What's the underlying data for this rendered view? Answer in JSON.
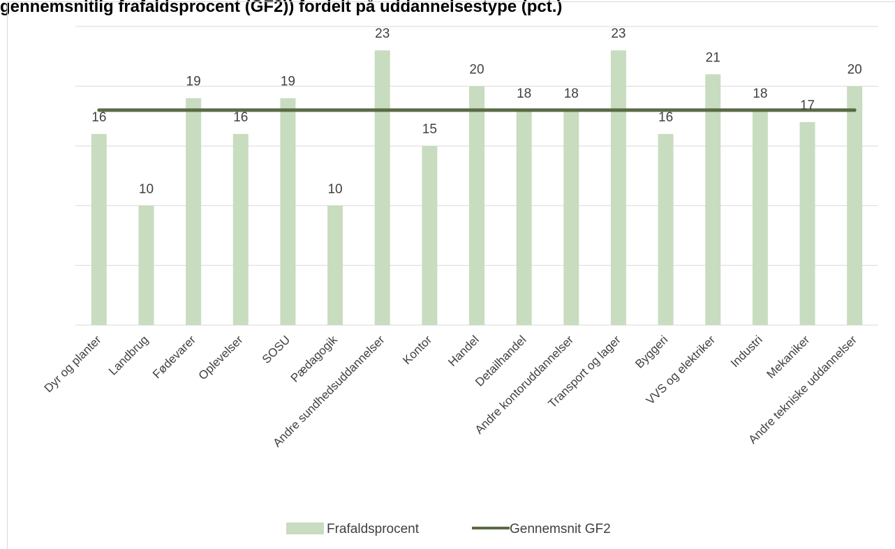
{
  "title": "gennemsnitlig frafaldsprocent (GF2)) fordelt på uddannelsestype (pct.)",
  "chart_data": {
    "type": "bar",
    "title": "gennemsnitlig frafaldsprocent (GF2)) fordelt på uddannelsestype (pct.)",
    "categories": [
      "Dyr og planter",
      "Landbrug",
      "Fødevarer",
      "Oplevelser",
      "SOSU",
      "Pædagogik",
      "Andre sundhedsuddannelser",
      "Kontor",
      "Handel",
      "Detailhandel",
      "Andre kontoruddannelser",
      "Transport og lager",
      "Byggeri",
      "VVS og elektriker",
      "Industri",
      "Mekaniker",
      "Andre tekniske uddannelser"
    ],
    "series": [
      {
        "name": "Frafaldsprocent",
        "type": "bar",
        "color": "#c8dcc0",
        "values": [
          16,
          10,
          19,
          16,
          19,
          10,
          23,
          15,
          20,
          18,
          18,
          23,
          16,
          21,
          18,
          17,
          20
        ]
      },
      {
        "name": "Gennemsnit GF2",
        "type": "line",
        "color": "#5a6b45",
        "values": [
          18,
          18,
          18,
          18,
          18,
          18,
          18,
          18,
          18,
          18,
          18,
          18,
          18,
          18,
          18,
          18,
          18
        ]
      }
    ],
    "ylim": [
      0,
      25
    ],
    "grid": true,
    "legend": "bottom",
    "xlabel": "",
    "ylabel": ""
  }
}
